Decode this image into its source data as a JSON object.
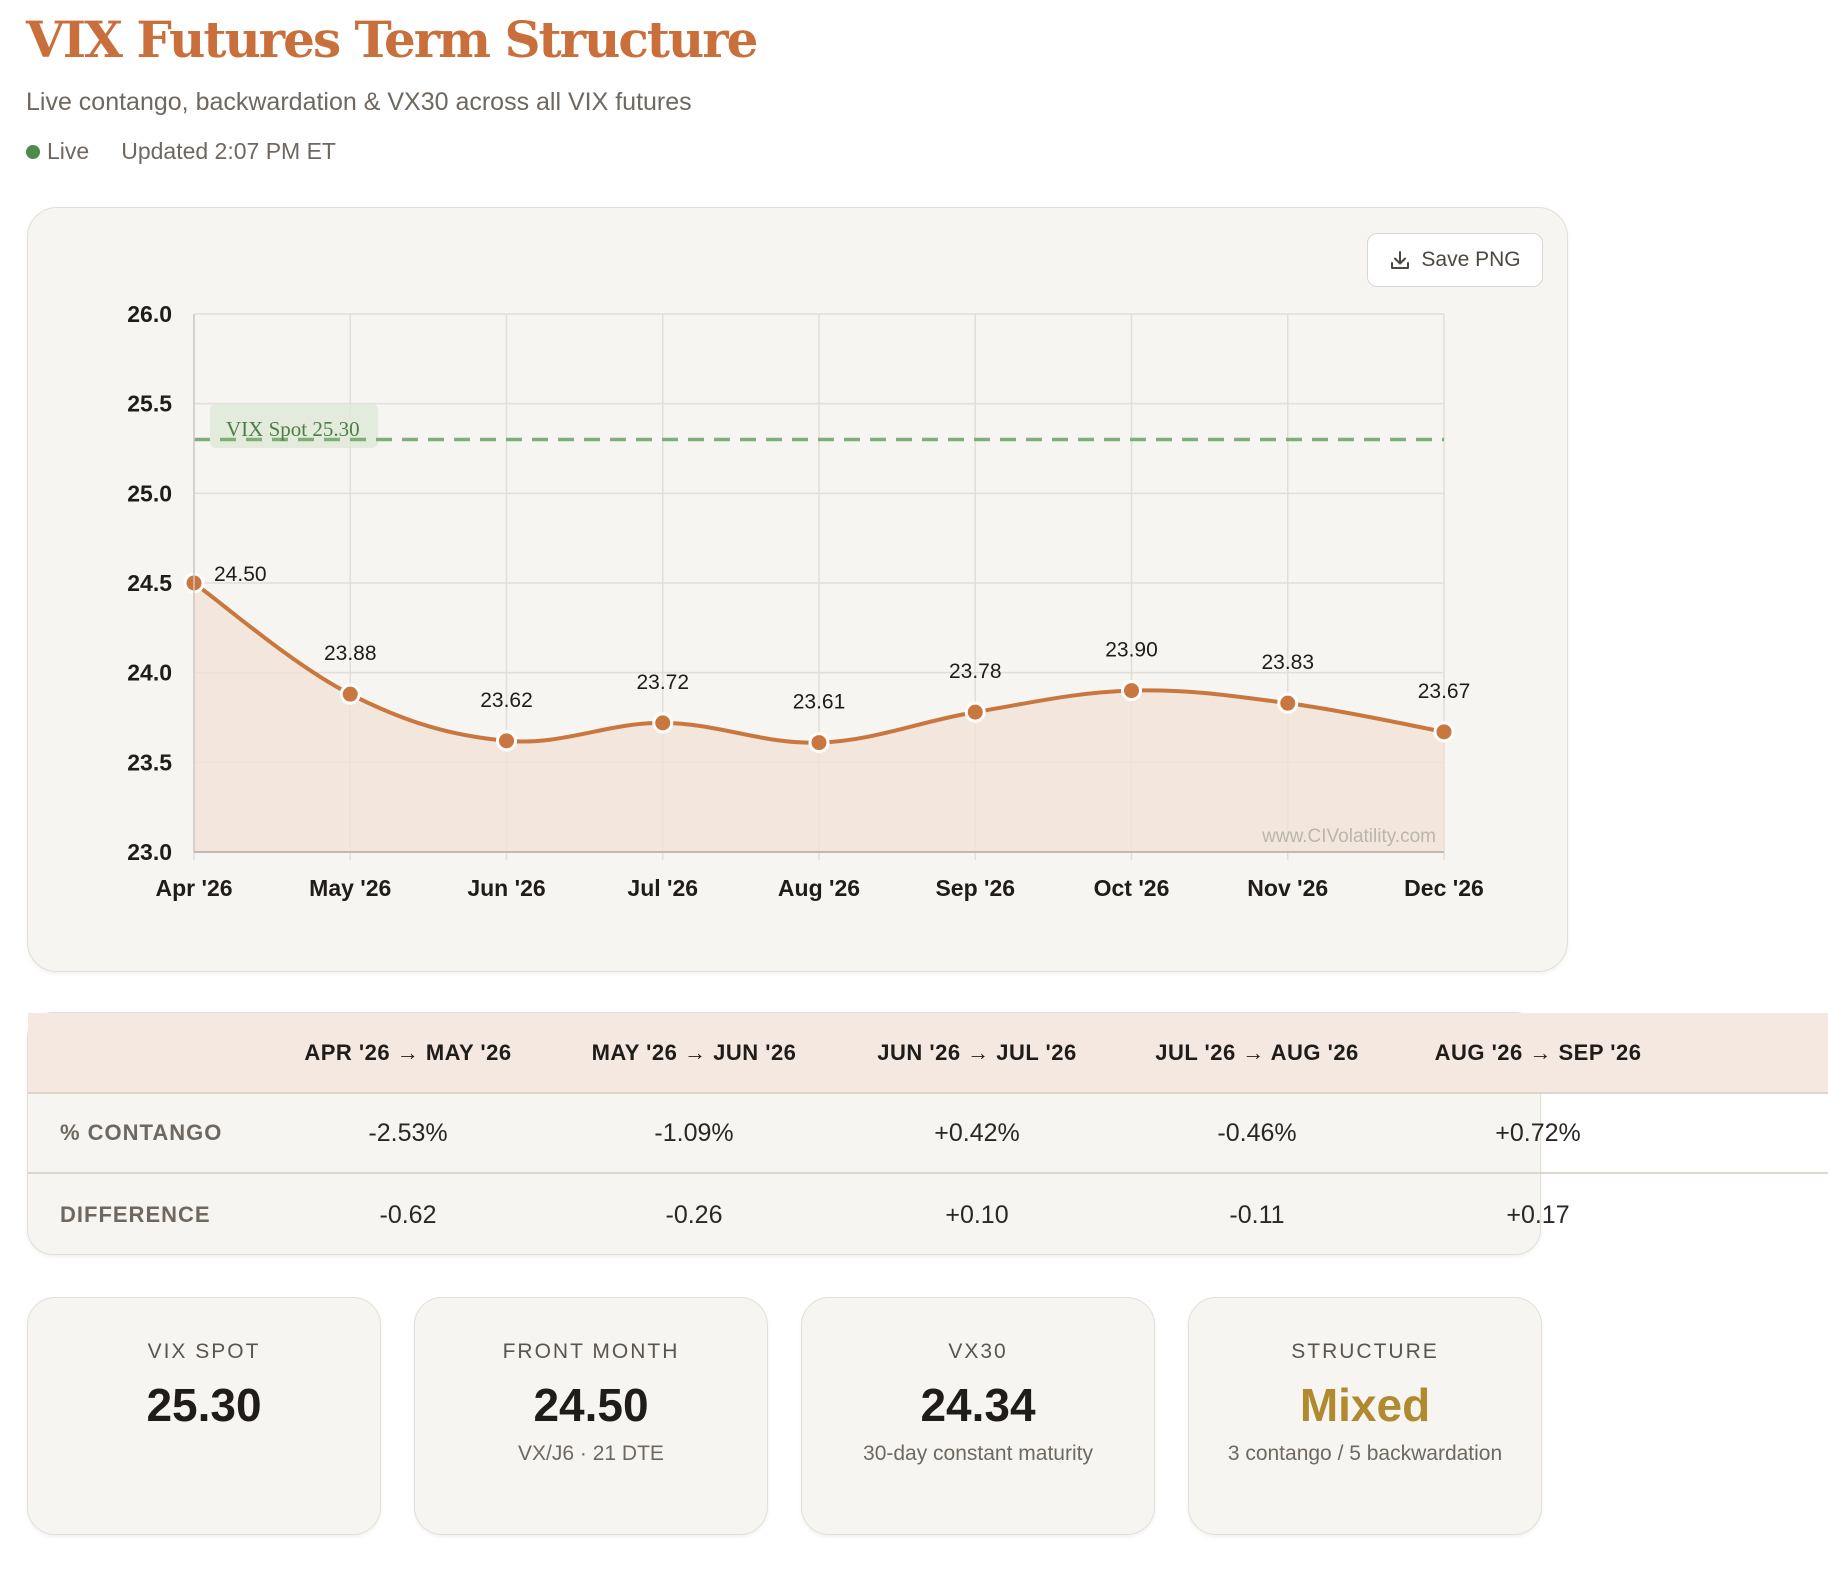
{
  "header": {
    "title": "VIX Futures Term Structure",
    "subtitle": "Live contango, backwardation & VX30 across all VIX futures",
    "live_label": "Live",
    "updated": "Updated 2:07 PM ET",
    "live_color": "#4f8a4a"
  },
  "chart": {
    "save_label": "Save PNG",
    "save_icon": "download-icon",
    "watermark": "www.CIVolatility.com",
    "spot_label": "VIX Spot 25.30",
    "line_color": "#c9773f",
    "spot_color": "#7fae78"
  },
  "chart_data": {
    "type": "line",
    "categories": [
      "Apr '26",
      "May '26",
      "Jun '26",
      "Jul '26",
      "Aug '26",
      "Sep '26",
      "Oct '26",
      "Nov '26",
      "Dec '26"
    ],
    "values": [
      24.5,
      23.88,
      23.62,
      23.72,
      23.61,
      23.78,
      23.9,
      23.83,
      23.67
    ],
    "value_labels": [
      "24.50",
      "23.88",
      "23.62",
      "23.72",
      "23.61",
      "23.78",
      "23.90",
      "23.83",
      "23.67"
    ],
    "ylim": [
      23.0,
      26.0
    ],
    "yticks": [
      "23.0",
      "23.5",
      "24.0",
      "24.5",
      "25.0",
      "25.5",
      "26.0"
    ],
    "reference_line": {
      "value": 25.3
    },
    "grid": true,
    "area_fill": true
  },
  "spread_table": {
    "columns": [
      "APR '26 → MAY '26",
      "MAY '26 → JUN '26",
      "JUN '26 → JUL '26",
      "JUL '26 → AUG '26",
      "AUG '26 → SEP '26"
    ],
    "rows": [
      {
        "label": "% CONTANGO",
        "values": [
          "-2.53%",
          "-1.09%",
          "+0.42%",
          "-0.46%",
          "+0.72%"
        ]
      },
      {
        "label": "DIFFERENCE",
        "values": [
          "-0.62",
          "-0.26",
          "+0.10",
          "-0.11",
          "+0.17"
        ]
      }
    ]
  },
  "stats": [
    {
      "label": "VIX SPOT",
      "value": "25.30",
      "sub": ""
    },
    {
      "label": "FRONT MONTH",
      "value": "24.50",
      "sub": "VX/J6 · 21 DTE"
    },
    {
      "label": "VX30",
      "value": "24.34",
      "sub": "30-day constant maturity"
    },
    {
      "label": "STRUCTURE",
      "value": "Mixed",
      "sub": "3 contango / 5 backwardation",
      "value_color": "#b08a2e"
    }
  ]
}
